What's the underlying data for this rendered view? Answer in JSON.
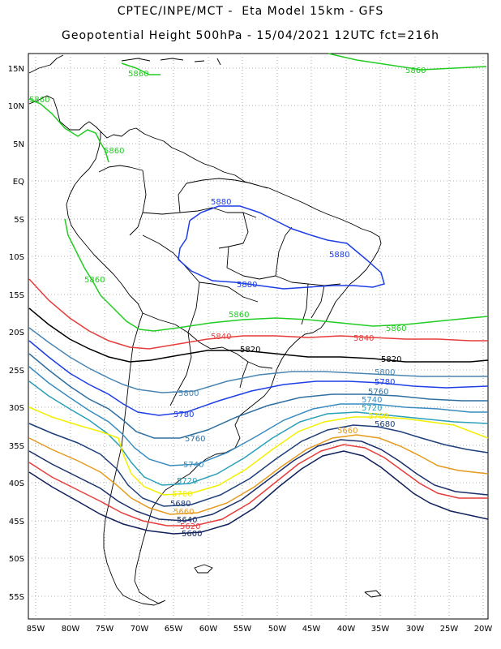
{
  "header": {
    "line1": "CPTEC/INPE/MCT -  Eta Model 15km - GFS",
    "line2": "Geopotential Height 500hPa - 15/04/2021 12UTC fct=216h"
  },
  "axes": {
    "lon_labels": [
      "85W",
      "80W",
      "75W",
      "70W",
      "65W",
      "60W",
      "55W",
      "50W",
      "45W",
      "40W",
      "35W",
      "30W",
      "25W",
      "20W"
    ],
    "lat_labels": [
      "15N",
      "10N",
      "5N",
      "EQ",
      "5S",
      "10S",
      "15S",
      "20S",
      "25S",
      "30S",
      "35S",
      "40S",
      "45S",
      "50S",
      "55S"
    ]
  },
  "contour_colors": {
    "5860": "#22cc22",
    "5880": "#1e3ee6",
    "5840": "#e63c3c",
    "5820": "#000000",
    "5800": "#4a86b2",
    "5780": "#1e3ee6",
    "5760": "#2f6fa0",
    "5740": "#3a8cc0",
    "5720": "#2a9fb8",
    "5700": "#f2f000",
    "5680": "#1f3f7a",
    "5660": "#e69a1e",
    "5640": "#1a2f6a",
    "5620": "#e63c3c",
    "5600": "#10205a"
  },
  "contour_labels": [
    {
      "text": "5860",
      "level": "5860"
    },
    {
      "text": "5860",
      "level": "5860"
    },
    {
      "text": "5860",
      "level": "5860"
    },
    {
      "text": "5860",
      "level": "5860"
    },
    {
      "text": "5860",
      "level": "5860"
    },
    {
      "text": "5860",
      "level": "5860"
    },
    {
      "text": "5860",
      "level": "5860"
    },
    {
      "text": "5880",
      "level": "5880"
    },
    {
      "text": "5880",
      "level": "5880"
    },
    {
      "text": "5880",
      "level": "5880"
    },
    {
      "text": "5840",
      "level": "5840"
    },
    {
      "text": "5840",
      "level": "5840"
    },
    {
      "text": "5820",
      "level": "5820"
    },
    {
      "text": "5820",
      "level": "5820"
    },
    {
      "text": "5800",
      "level": "5800"
    },
    {
      "text": "5800",
      "level": "5800"
    },
    {
      "text": "5780",
      "level": "5780"
    },
    {
      "text": "5780",
      "level": "5780"
    },
    {
      "text": "5760",
      "level": "5760"
    },
    {
      "text": "5760",
      "level": "5760"
    },
    {
      "text": "5740",
      "level": "5740"
    },
    {
      "text": "5740",
      "level": "5740"
    },
    {
      "text": "5720",
      "level": "5720"
    },
    {
      "text": "5720",
      "level": "5720"
    },
    {
      "text": "5700",
      "level": "5700"
    },
    {
      "text": "5700",
      "level": "5700"
    },
    {
      "text": "5680",
      "level": "5680"
    },
    {
      "text": "5680",
      "level": "5680"
    },
    {
      "text": "5660",
      "level": "5660"
    },
    {
      "text": "5660",
      "level": "5660"
    },
    {
      "text": "5640",
      "level": "5640"
    },
    {
      "text": "5620",
      "level": "5620"
    },
    {
      "text": "5600",
      "level": "5600"
    }
  ]
}
